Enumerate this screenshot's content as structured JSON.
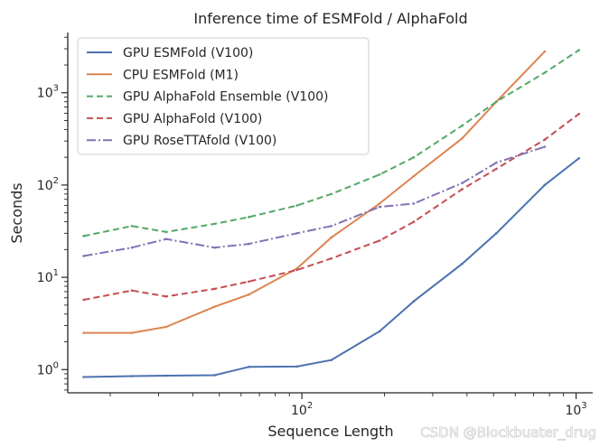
{
  "chart_data": {
    "type": "line",
    "title": "Inference time of ESMFold / AlphaFold",
    "xlabel": "Sequence Length",
    "ylabel": "Seconds",
    "xscale": "log",
    "yscale": "log",
    "xlim": [
      14,
      1150
    ],
    "ylim": [
      0.56,
      4500
    ],
    "x_ticks": [
      {
        "value": 100,
        "base": "10",
        "exp": "2"
      },
      {
        "value": 1000,
        "base": "10",
        "exp": "3"
      }
    ],
    "y_ticks": [
      {
        "value": 1,
        "base": "10",
        "exp": "0"
      },
      {
        "value": 10,
        "base": "10",
        "exp": "1"
      },
      {
        "value": 100,
        "base": "10",
        "exp": "2"
      },
      {
        "value": 1000,
        "base": "10",
        "exp": "3"
      }
    ],
    "x_minor_ticks": [
      20,
      30,
      40,
      50,
      60,
      70,
      80,
      90,
      200,
      300,
      400,
      500,
      600,
      700,
      800,
      900
    ],
    "y_minor_ticks": [
      0.6,
      0.7,
      0.8,
      0.9,
      2,
      3,
      4,
      5,
      6,
      7,
      8,
      9,
      20,
      30,
      40,
      50,
      60,
      70,
      80,
      90,
      200,
      300,
      400,
      500,
      600,
      700,
      800,
      900,
      2000,
      3000,
      4000
    ],
    "legend_position": "top-left",
    "series": [
      {
        "name": "GPU ESMFold (V100)",
        "color": "#4c72b0",
        "dash": "solid",
        "x": [
          16,
          24,
          32,
          48,
          64,
          96,
          128,
          192,
          256,
          384,
          512,
          768,
          1024
        ],
        "y": [
          0.83,
          0.85,
          0.86,
          0.87,
          1.07,
          1.08,
          1.27,
          2.6,
          5.5,
          14,
          30,
          100,
          195
        ]
      },
      {
        "name": "CPU ESMFold (M1)",
        "color": "#dd8452",
        "dash": "solid",
        "x": [
          16,
          24,
          32,
          48,
          64,
          96,
          128,
          192,
          256,
          384,
          512,
          768
        ],
        "y": [
          2.5,
          2.5,
          2.9,
          4.8,
          6.5,
          12.5,
          27,
          63,
          125,
          320,
          800,
          2800
        ]
      },
      {
        "name": "GPU AlphaFold Ensemble (V100)",
        "color": "#55a868",
        "dash": "dashed",
        "x": [
          16,
          24,
          32,
          48,
          64,
          96,
          128,
          192,
          256,
          384,
          512,
          768,
          1024
        ],
        "y": [
          28,
          36,
          31,
          38,
          45,
          60,
          80,
          130,
          200,
          440,
          800,
          1650,
          2900
        ]
      },
      {
        "name": "GPU AlphaFold (V100)",
        "color": "#c44e52",
        "dash": "dashed",
        "x": [
          16,
          24,
          32,
          48,
          64,
          96,
          128,
          192,
          256,
          384,
          512,
          768,
          1024
        ],
        "y": [
          5.7,
          7.2,
          6.2,
          7.5,
          9,
          12,
          16,
          25,
          40,
          90,
          150,
          310,
          590
        ]
      },
      {
        "name": "GPU RoseTTAfold (V100)",
        "color": "#8172b3",
        "dash": "dashdot",
        "x": [
          16,
          24,
          32,
          48,
          64,
          96,
          128,
          192,
          256,
          384,
          512,
          768
        ],
        "y": [
          17,
          21,
          26,
          21,
          23,
          30,
          36,
          58,
          63,
          105,
          175,
          260
        ]
      }
    ]
  },
  "watermark": "CSDN @Blockbuater_drug"
}
